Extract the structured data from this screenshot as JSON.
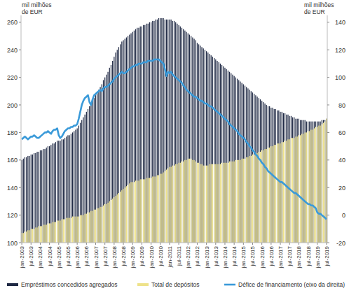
{
  "chart_data": {
    "type": "bar",
    "stacked": false,
    "legend": "bottom",
    "y_label": "mil milhões\nde EUR",
    "y2_label": "mil milhões\nde EUR",
    "ylim": [
      100,
      265
    ],
    "yticks": [
      100,
      120,
      140,
      160,
      180,
      200,
      220,
      240,
      260
    ],
    "y2lim": [
      -20,
      145
    ],
    "y2ticks": [
      -20,
      0,
      20,
      40,
      60,
      80,
      100,
      120,
      140
    ],
    "categories": [
      "jan-2003",
      null,
      null,
      null,
      null,
      null,
      "jul-2003",
      null,
      null,
      null,
      null,
      null,
      "jan-2004",
      null,
      null,
      null,
      null,
      null,
      "jul-2004",
      null,
      null,
      null,
      null,
      null,
      "jan-2005",
      null,
      null,
      null,
      null,
      null,
      "jul-2005",
      null,
      null,
      null,
      null,
      null,
      "jan-2006",
      null,
      null,
      null,
      null,
      null,
      "jul-2006",
      null,
      null,
      null,
      null,
      null,
      "jan-2007",
      null,
      null,
      null,
      null,
      null,
      "jul-2007",
      null,
      null,
      null,
      null,
      null,
      "jan-2008",
      null,
      null,
      null,
      null,
      null,
      "jul-2008",
      null,
      null,
      null,
      null,
      null,
      "jan-2009",
      null,
      null,
      null,
      null,
      null,
      "jul-2009",
      null,
      null,
      null,
      null,
      null,
      "jan-2010",
      null,
      null,
      null,
      null,
      null,
      "jul-2010",
      null,
      null,
      null,
      null,
      null,
      "jan-2011",
      null,
      null,
      null,
      null,
      null,
      "jul-2011",
      null,
      null,
      null,
      null,
      null,
      "jan-2012",
      null,
      null,
      null,
      null,
      null,
      "jul-2012",
      null,
      null,
      null,
      null,
      null,
      "jan-2013",
      null,
      null,
      null,
      null,
      null,
      "jul-2013",
      null,
      null,
      null,
      null,
      null,
      "jan-2014",
      null,
      null,
      null,
      null,
      null,
      "jul-2014",
      null,
      null,
      null,
      null,
      null,
      "jan-2015",
      null,
      null,
      null,
      null,
      null,
      "jul-2015",
      null,
      null,
      null,
      null,
      null,
      "jan-2016",
      null,
      null,
      null,
      null,
      null,
      "jul-2016",
      null,
      null,
      null,
      null,
      null,
      "jan-2017",
      null,
      null,
      null,
      null,
      null,
      "jul-2017",
      null,
      null,
      null,
      null,
      null,
      "jan-2018",
      null,
      null,
      null,
      null,
      null,
      "jul-2018",
      null,
      null,
      null,
      null,
      null,
      "jan-2019",
      null,
      null,
      null,
      null,
      null,
      "jul-2019"
    ],
    "series": [
      {
        "name": "Empréstimos concedidos agregados",
        "type": "bar",
        "color": "#1f2944",
        "values": [
          160,
          161,
          162,
          162,
          163,
          163,
          164,
          164,
          165,
          165,
          166,
          166,
          167,
          167,
          168,
          168,
          169,
          170,
          170,
          171,
          172,
          172,
          173,
          174,
          174,
          174,
          175,
          175,
          176,
          177,
          178,
          178,
          179,
          180,
          181,
          182,
          183,
          185,
          187,
          189,
          191,
          193,
          195,
          197,
          199,
          201,
          203,
          205,
          207,
          209,
          211,
          213,
          215,
          218,
          220,
          222,
          224,
          227,
          229,
          232,
          235,
          238,
          240,
          242,
          244,
          246,
          247,
          248,
          249,
          250,
          251,
          252,
          253,
          254,
          255,
          256,
          256,
          257,
          257,
          258,
          258,
          259,
          259,
          260,
          260,
          261,
          261,
          262,
          262,
          263,
          263,
          263,
          263,
          262,
          262,
          262,
          262,
          262,
          261,
          261,
          260,
          259,
          258,
          257,
          256,
          255,
          254,
          253,
          252,
          251,
          250,
          249,
          248,
          247,
          245,
          244,
          243,
          242,
          241,
          240,
          239,
          238,
          237,
          236,
          235,
          234,
          233,
          232,
          231,
          230,
          229,
          228,
          227,
          226,
          225,
          224,
          223,
          222,
          221,
          220,
          219,
          218,
          217,
          216,
          215,
          214,
          213,
          212,
          211,
          210,
          209,
          208,
          207,
          206,
          205,
          204,
          203,
          202,
          201,
          200,
          199,
          199,
          198,
          198,
          197,
          197,
          196,
          196,
          195,
          195,
          194,
          194,
          193,
          193,
          192,
          192,
          191,
          191,
          190,
          190,
          190,
          189,
          189,
          189,
          189,
          188,
          188,
          188,
          188,
          188,
          188,
          188,
          188,
          188,
          188,
          189,
          189,
          189,
          190
        ]
      },
      {
        "name": "Total de depósitos",
        "type": "bar",
        "color": "#eee28a",
        "values": [
          107,
          107,
          108,
          108,
          109,
          109,
          110,
          110,
          110,
          111,
          111,
          112,
          112,
          112,
          113,
          113,
          113,
          114,
          114,
          114,
          115,
          115,
          115,
          116,
          116,
          116,
          117,
          117,
          117,
          118,
          118,
          118,
          118,
          119,
          119,
          119,
          119,
          119,
          120,
          120,
          120,
          121,
          121,
          122,
          122,
          123,
          123,
          124,
          124,
          125,
          125,
          126,
          126,
          127,
          128,
          128,
          129,
          130,
          131,
          132,
          133,
          134,
          135,
          136,
          137,
          138,
          139,
          140,
          141,
          142,
          143,
          144,
          144,
          144,
          145,
          145,
          145,
          146,
          146,
          146,
          146,
          147,
          147,
          147,
          147,
          148,
          148,
          148,
          149,
          149,
          150,
          150,
          151,
          152,
          153,
          154,
          155,
          155,
          156,
          156,
          157,
          157,
          158,
          158,
          159,
          159,
          160,
          160,
          161,
          161,
          161,
          160,
          160,
          159,
          158,
          158,
          157,
          157,
          156,
          156,
          156,
          156,
          157,
          157,
          157,
          157,
          157,
          157,
          157,
          157,
          158,
          158,
          158,
          158,
          158,
          159,
          159,
          159,
          159,
          160,
          160,
          160,
          160,
          161,
          161,
          161,
          162,
          162,
          163,
          163,
          164,
          164,
          165,
          165,
          166,
          166,
          167,
          167,
          168,
          168,
          169,
          169,
          170,
          170,
          171,
          171,
          172,
          172,
          172,
          173,
          173,
          174,
          174,
          175,
          175,
          176,
          176,
          176,
          177,
          177,
          178,
          178,
          179,
          179,
          180,
          180,
          181,
          181,
          182,
          182,
          183,
          184,
          184,
          185,
          185,
          186,
          187,
          188,
          190
        ]
      },
      {
        "name": "Défice de financiamento (eixo da direita)",
        "type": "line",
        "axis": "y2",
        "color": "#3a9ad9",
        "values": [
          55,
          56,
          57,
          56,
          55,
          56,
          57,
          57,
          58,
          57,
          56,
          56,
          57,
          58,
          59,
          60,
          60,
          61,
          60,
          59,
          61,
          62,
          62,
          63,
          58,
          56,
          57,
          59,
          61,
          62,
          63,
          63,
          64,
          64,
          65,
          65,
          66,
          70,
          75,
          80,
          83,
          85,
          86,
          87,
          82,
          80,
          84,
          87,
          88,
          89,
          90,
          91,
          90,
          92,
          93,
          93,
          94,
          95,
          96,
          97,
          99,
          100,
          101,
          102,
          103,
          104,
          103,
          103,
          104,
          105,
          106,
          107,
          108,
          108,
          109,
          109,
          110,
          110,
          110,
          111,
          111,
          111,
          112,
          112,
          112,
          112,
          113,
          113,
          113,
          113,
          112,
          111,
          110,
          106,
          101,
          104,
          103,
          104,
          102,
          101,
          100,
          99,
          98,
          97,
          96,
          94,
          93,
          91,
          90,
          89,
          88,
          87,
          86,
          86,
          85,
          84,
          83,
          83,
          82,
          81,
          81,
          80,
          79,
          79,
          78,
          77,
          76,
          75,
          74,
          73,
          72,
          71,
          70,
          69,
          68,
          66,
          65,
          64,
          63,
          62,
          61,
          59,
          58,
          57,
          56,
          55,
          53,
          52,
          50,
          49,
          47,
          46,
          44,
          43,
          41,
          40,
          38,
          37,
          35,
          34,
          32,
          31,
          30,
          29,
          28,
          27,
          26,
          25,
          24,
          24,
          23,
          22,
          21,
          20,
          19,
          18,
          17,
          16,
          16,
          15,
          14,
          13,
          12,
          11,
          10,
          9,
          8,
          8,
          7,
          7,
          6,
          5,
          2,
          1,
          1,
          0,
          -1,
          -2,
          -3
        ]
      }
    ]
  }
}
